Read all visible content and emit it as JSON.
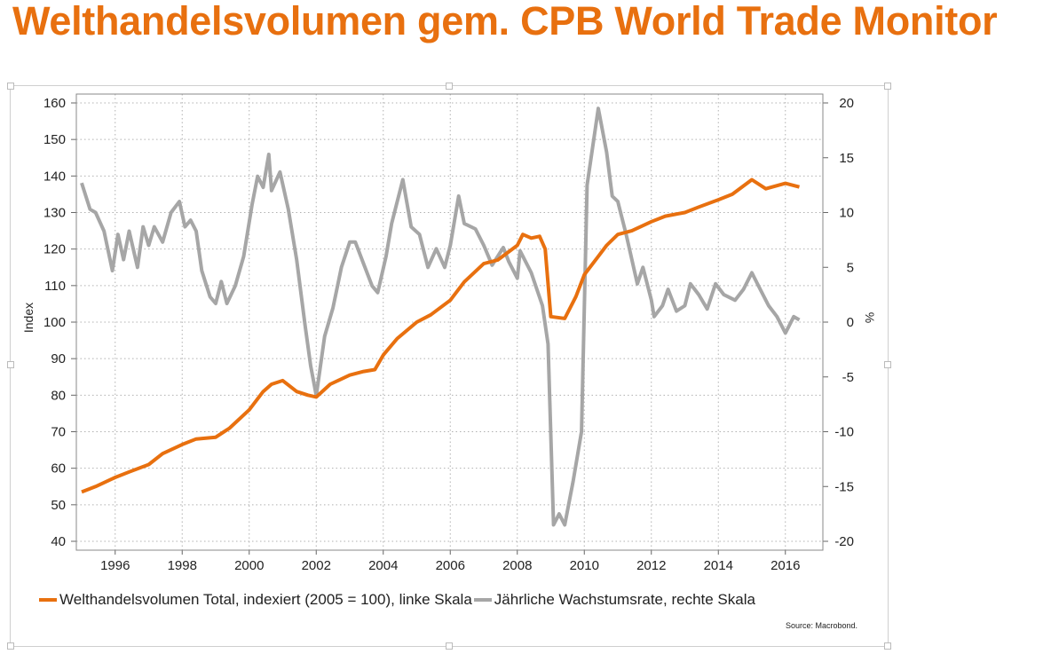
{
  "title": "Welthandelsvolumen gem. CPB World Trade Monitor",
  "source": "Source: Macrobond.",
  "chart_data": {
    "type": "line",
    "xlim": [
      "1995-01",
      "2017-01"
    ],
    "x_ticks": [
      "1996",
      "1998",
      "2000",
      "2002",
      "2004",
      "2006",
      "2008",
      "2010",
      "2012",
      "2014",
      "2016"
    ],
    "y_left": {
      "label": "Index",
      "lim": [
        40,
        160
      ],
      "ticks": [
        40,
        50,
        60,
        70,
        80,
        90,
        100,
        110,
        120,
        130,
        140,
        150,
        160
      ]
    },
    "y_right": {
      "label": "%",
      "lim": [
        -20,
        20
      ],
      "ticks": [
        -20,
        -15,
        -10,
        -5,
        0,
        5,
        10,
        15,
        20
      ]
    },
    "grid": true,
    "legend_placement": "bottom",
    "series": [
      {
        "name": "Welthandelsvolumen Total, indexiert (2005 = 100), linke Skala",
        "axis": "left",
        "color": "#e8700f",
        "points": [
          [
            "1995-01",
            53.5
          ],
          [
            "1995-06",
            55
          ],
          [
            "1996-01",
            57.5
          ],
          [
            "1996-06",
            59
          ],
          [
            "1997-01",
            61
          ],
          [
            "1997-06",
            64
          ],
          [
            "1998-01",
            66.5
          ],
          [
            "1998-06",
            68
          ],
          [
            "1999-01",
            68.5
          ],
          [
            "1999-06",
            71
          ],
          [
            "2000-01",
            76
          ],
          [
            "2000-06",
            81
          ],
          [
            "2000-09",
            83
          ],
          [
            "2001-01",
            84
          ],
          [
            "2001-06",
            81
          ],
          [
            "2001-10",
            80
          ],
          [
            "2002-01",
            79.5
          ],
          [
            "2002-06",
            83
          ],
          [
            "2003-01",
            85.5
          ],
          [
            "2003-06",
            86.5
          ],
          [
            "2003-10",
            87
          ],
          [
            "2004-01",
            91
          ],
          [
            "2004-06",
            95.5
          ],
          [
            "2005-01",
            100
          ],
          [
            "2005-06",
            102
          ],
          [
            "2006-01",
            106
          ],
          [
            "2006-06",
            111
          ],
          [
            "2007-01",
            116
          ],
          [
            "2007-06",
            117
          ],
          [
            "2008-01",
            121
          ],
          [
            "2008-03",
            124
          ],
          [
            "2008-06",
            123
          ],
          [
            "2008-09",
            123.5
          ],
          [
            "2008-11",
            120
          ],
          [
            "2009-01",
            101.5
          ],
          [
            "2009-06",
            101
          ],
          [
            "2009-10",
            107
          ],
          [
            "2010-01",
            113
          ],
          [
            "2010-06",
            118
          ],
          [
            "2010-09",
            121
          ],
          [
            "2011-01",
            124
          ],
          [
            "2011-06",
            125
          ],
          [
            "2012-01",
            127.5
          ],
          [
            "2012-06",
            129
          ],
          [
            "2013-01",
            130
          ],
          [
            "2013-06",
            131.5
          ],
          [
            "2014-01",
            133.5
          ],
          [
            "2014-06",
            135
          ],
          [
            "2015-01",
            139
          ],
          [
            "2015-06",
            136.5
          ],
          [
            "2016-01",
            138
          ],
          [
            "2016-06",
            137
          ]
        ]
      },
      {
        "name": "Jährliche Wachstumsrate, rechte Skala",
        "axis": "right",
        "color": "#a6a6a6",
        "points": [
          [
            "1995-01",
            12.7
          ],
          [
            "1995-04",
            10.3
          ],
          [
            "1995-06",
            10
          ],
          [
            "1995-09",
            8.3
          ],
          [
            "1995-12",
            4.7
          ],
          [
            "1996-02",
            8
          ],
          [
            "1996-04",
            5.7
          ],
          [
            "1996-06",
            8.3
          ],
          [
            "1996-09",
            5
          ],
          [
            "1996-11",
            8.7
          ],
          [
            "1997-01",
            7
          ],
          [
            "1997-03",
            8.7
          ],
          [
            "1997-06",
            7.3
          ],
          [
            "1997-09",
            10
          ],
          [
            "1997-12",
            11
          ],
          [
            "1998-02",
            8.7
          ],
          [
            "1998-04",
            9.3
          ],
          [
            "1998-06",
            8.3
          ],
          [
            "1998-08",
            4.7
          ],
          [
            "1998-11",
            2.3
          ],
          [
            "1999-01",
            1.7
          ],
          [
            "1999-03",
            3.7
          ],
          [
            "1999-05",
            1.7
          ],
          [
            "1999-08",
            3.3
          ],
          [
            "1999-11",
            6
          ],
          [
            "2000-02",
            10.7
          ],
          [
            "2000-04",
            13.3
          ],
          [
            "2000-06",
            12.3
          ],
          [
            "2000-08",
            15.3
          ],
          [
            "2000-09",
            12
          ],
          [
            "2000-12",
            13.7
          ],
          [
            "2001-03",
            10.3
          ],
          [
            "2001-06",
            5.7
          ],
          [
            "2001-09",
            -0.3
          ],
          [
            "2001-11",
            -4
          ],
          [
            "2002-01",
            -6.7
          ],
          [
            "2002-04",
            -1.3
          ],
          [
            "2002-07",
            1.3
          ],
          [
            "2002-10",
            5
          ],
          [
            "2003-01",
            7.3
          ],
          [
            "2003-03",
            7.3
          ],
          [
            "2003-06",
            5.3
          ],
          [
            "2003-09",
            3.3
          ],
          [
            "2003-11",
            2.7
          ],
          [
            "2004-02",
            6
          ],
          [
            "2004-04",
            9
          ],
          [
            "2004-08",
            13
          ],
          [
            "2004-11",
            8.7
          ],
          [
            "2005-02",
            8
          ],
          [
            "2005-05",
            5
          ],
          [
            "2005-08",
            6.7
          ],
          [
            "2005-11",
            5
          ],
          [
            "2006-01",
            7
          ],
          [
            "2006-04",
            11.5
          ],
          [
            "2006-06",
            9
          ],
          [
            "2006-10",
            8.5
          ],
          [
            "2007-01",
            7
          ],
          [
            "2007-04",
            5.2
          ],
          [
            "2007-08",
            6.8
          ],
          [
            "2007-10",
            5.5
          ],
          [
            "2008-01",
            4
          ],
          [
            "2008-02",
            6.5
          ],
          [
            "2008-06",
            4.5
          ],
          [
            "2008-08",
            3
          ],
          [
            "2008-10",
            1.5
          ],
          [
            "2008-12",
            -2
          ],
          [
            "2009-02",
            -18.5
          ],
          [
            "2009-04",
            -17.5
          ],
          [
            "2009-06",
            -18.5
          ],
          [
            "2009-09",
            -14.5
          ],
          [
            "2009-12",
            -10
          ],
          [
            "2010-02",
            12.5
          ],
          [
            "2010-04",
            16
          ],
          [
            "2010-06",
            19.5
          ],
          [
            "2010-09",
            15.5
          ],
          [
            "2010-11",
            11.5
          ],
          [
            "2011-01",
            11
          ],
          [
            "2011-04",
            8
          ],
          [
            "2011-08",
            3.5
          ],
          [
            "2011-10",
            5
          ],
          [
            "2012-01",
            2
          ],
          [
            "2012-02",
            0.5
          ],
          [
            "2012-05",
            1.5
          ],
          [
            "2012-07",
            3
          ],
          [
            "2012-10",
            1
          ],
          [
            "2013-01",
            1.5
          ],
          [
            "2013-03",
            3.5
          ],
          [
            "2013-06",
            2.5
          ],
          [
            "2013-09",
            1.2
          ],
          [
            "2013-12",
            3.5
          ],
          [
            "2014-03",
            2.5
          ],
          [
            "2014-07",
            2
          ],
          [
            "2014-10",
            3
          ],
          [
            "2015-01",
            4.5
          ],
          [
            "2015-04",
            3
          ],
          [
            "2015-07",
            1.5
          ],
          [
            "2015-10",
            0.5
          ],
          [
            "2016-01",
            -1
          ],
          [
            "2016-04",
            0.5
          ],
          [
            "2016-06",
            0.2
          ]
        ]
      }
    ]
  }
}
